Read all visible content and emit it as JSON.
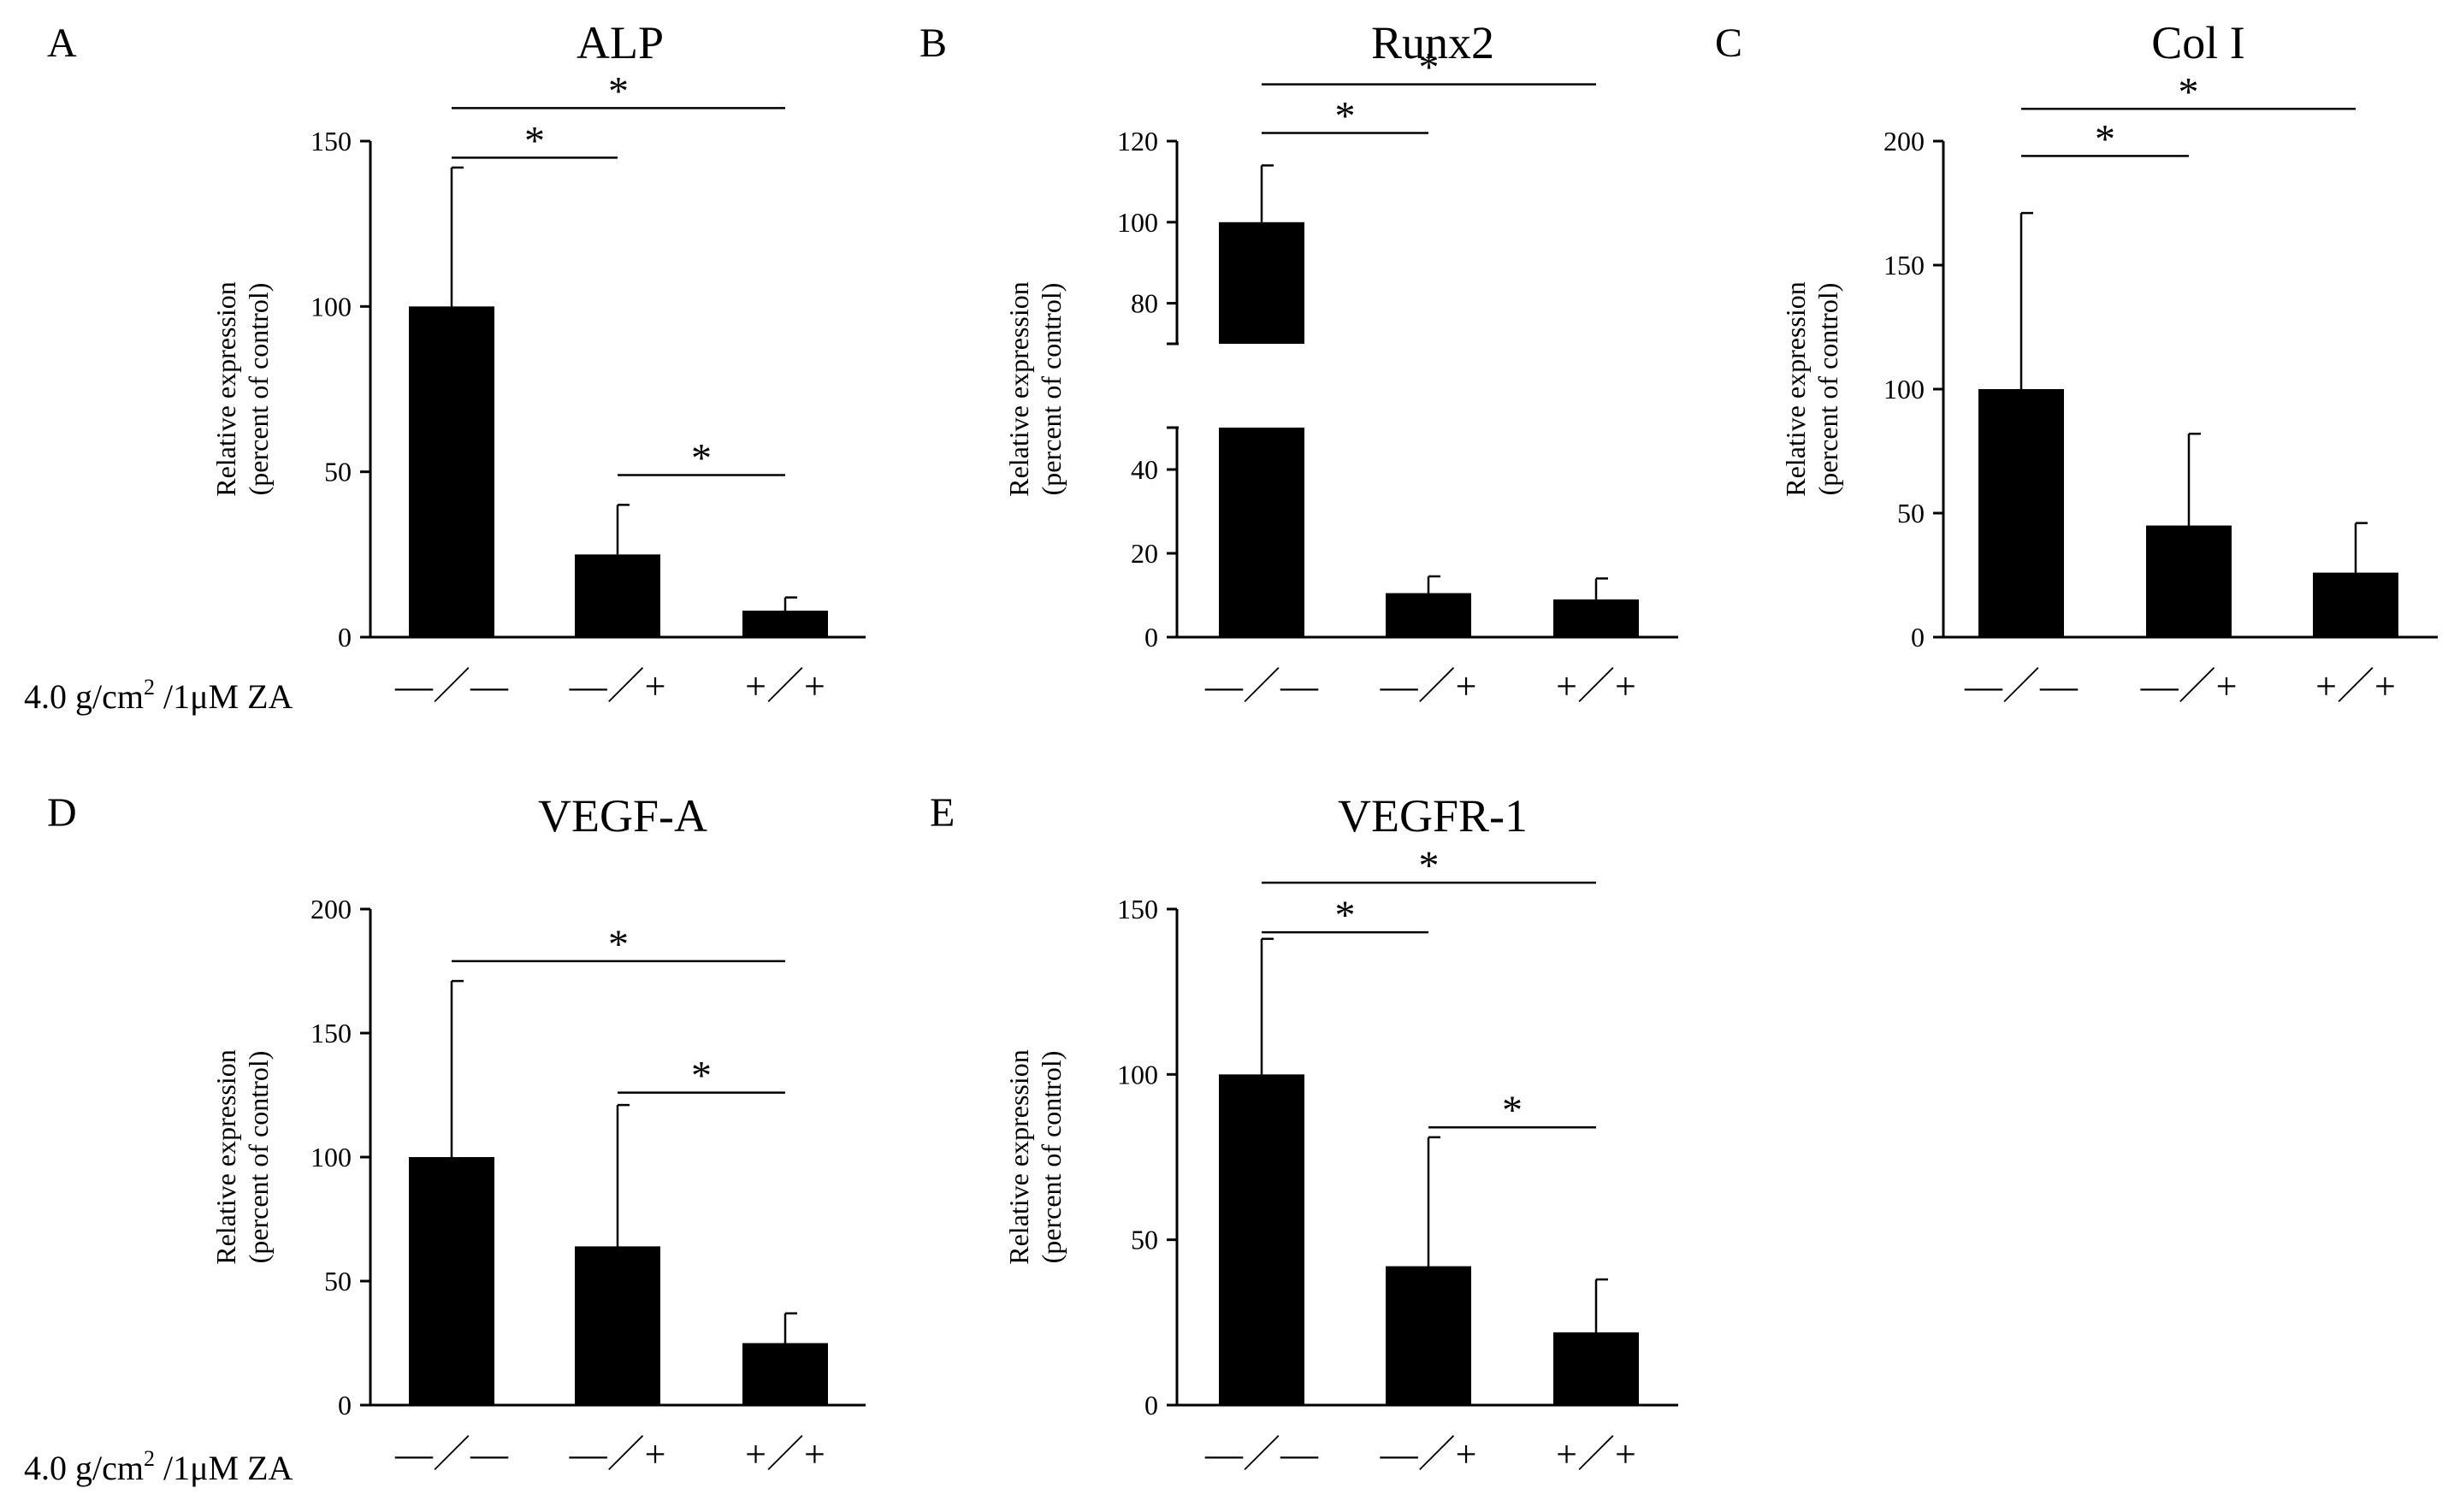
{
  "row_label": {
    "prefix": "4.0 g/cm",
    "sup": "2",
    "suffix": " /1μM ZA"
  },
  "chart_data": [
    {
      "type": "bar",
      "panel": "A",
      "title": "ALP",
      "ylabel": [
        "Relative  expression",
        "(percent  of control)"
      ],
      "ylim": [
        0,
        150
      ],
      "yticks": [
        0,
        50,
        100,
        150
      ],
      "categories": [
        "—／—",
        "—／+",
        "+／+"
      ],
      "values": [
        100,
        25,
        8
      ],
      "errors": [
        42,
        15,
        4
      ],
      "significance": [
        {
          "from": 0,
          "to": 1,
          "y": 145,
          "label": "*"
        },
        {
          "from": 0,
          "to": 2,
          "y": 160,
          "label": "*"
        },
        {
          "from": 1,
          "to": 2,
          "y": 49,
          "label": "*"
        }
      ]
    },
    {
      "type": "bar",
      "panel": "B",
      "title": "Runx2",
      "ylabel": [
        "Relative  expression",
        "(percent  of control)"
      ],
      "broken_axis": {
        "lower": [
          0,
          50
        ],
        "upper": [
          70,
          120
        ]
      },
      "yticks_lower": [
        0,
        20,
        40
      ],
      "yticks_upper": [
        80,
        100,
        120
      ],
      "categories": [
        "—／—",
        "—／+",
        "+／+"
      ],
      "values": [
        100,
        10.5,
        9
      ],
      "errors": [
        14,
        4,
        5
      ],
      "significance": [
        {
          "from": 0,
          "to": 1,
          "y": 122,
          "label": "*"
        },
        {
          "from": 0,
          "to": 2,
          "y": 134,
          "label": "*"
        }
      ]
    },
    {
      "type": "bar",
      "panel": "C",
      "title": "Col I",
      "ylabel": [
        "Relative  expression",
        "(percent  of control)"
      ],
      "ylim": [
        0,
        200
      ],
      "yticks": [
        0,
        50,
        100,
        150,
        200
      ],
      "categories": [
        "—／—",
        "—／+",
        "+／+"
      ],
      "values": [
        100,
        45,
        26
      ],
      "errors": [
        71,
        37,
        20
      ],
      "significance": [
        {
          "from": 0,
          "to": 1,
          "y": 194,
          "label": "*"
        },
        {
          "from": 0,
          "to": 2,
          "y": 213,
          "label": "*"
        }
      ]
    },
    {
      "type": "bar",
      "panel": "D",
      "title": "VEGF-A",
      "ylabel": [
        "Relative  expression",
        "(percent  of control)"
      ],
      "ylim": [
        0,
        200
      ],
      "yticks": [
        0,
        50,
        100,
        150,
        200
      ],
      "categories": [
        "—／—",
        "—／+",
        "+／+"
      ],
      "values": [
        100,
        64,
        25
      ],
      "errors": [
        71,
        57,
        12
      ],
      "significance": [
        {
          "from": 0,
          "to": 2,
          "y": 179,
          "label": "*"
        },
        {
          "from": 1,
          "to": 2,
          "y": 126,
          "label": "*"
        }
      ]
    },
    {
      "type": "bar",
      "panel": "E",
      "title": "VEGFR-1",
      "ylabel": [
        "Relative  expression",
        "(percent  of control)"
      ],
      "ylim": [
        0,
        150
      ],
      "yticks": [
        0,
        50,
        100,
        150
      ],
      "categories": [
        "—／—",
        "—／+",
        "+／+"
      ],
      "values": [
        100,
        42,
        22
      ],
      "errors": [
        41,
        39,
        16
      ],
      "significance": [
        {
          "from": 0,
          "to": 1,
          "y": 143,
          "label": "*"
        },
        {
          "from": 0,
          "to": 2,
          "y": 158,
          "label": "*"
        },
        {
          "from": 1,
          "to": 2,
          "y": 84,
          "label": "*"
        }
      ]
    }
  ]
}
